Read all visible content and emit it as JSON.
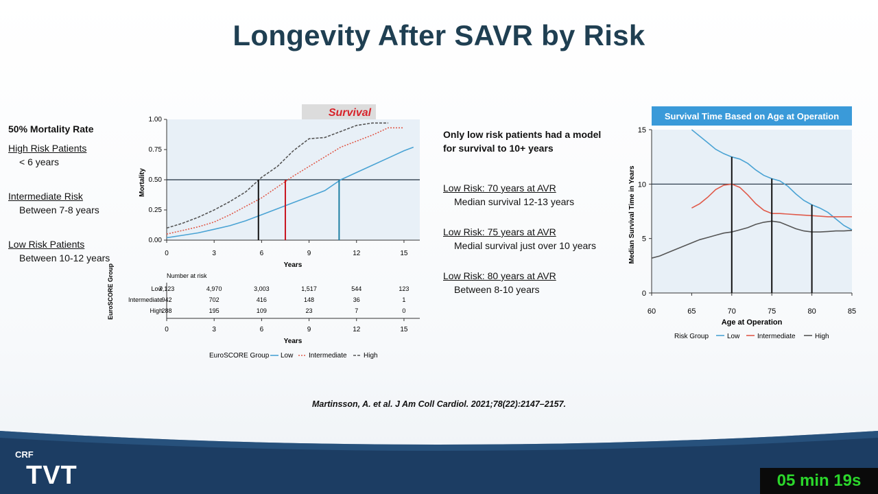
{
  "slide": {
    "title": "Longevity After SAVR by Risk",
    "citation": "Martinsson, A. et al. J Am Coll Cardiol. 2021;78(22):2147–2157.",
    "logo_small": "CRF",
    "logo_large": "TVT",
    "timer": "05 min 19s"
  },
  "left_panel": {
    "heading": "50% Mortality Rate",
    "high_label": "High Risk Patients",
    "high_value": "< 6 years",
    "inter_label": "Intermediate Risk",
    "inter_value": "Between 7-8 years",
    "low_label": "Low Risk Patients",
    "low_value": "Between 10-12 years"
  },
  "middle_panel": {
    "heading_line1": "Only low risk patients had a model",
    "heading_line2": "for survival to 10+ years",
    "item1_label": "Low Risk: 70 years at AVR",
    "item1_value": "Median survival 12-13 years",
    "item2_label": "Low Risk: 75 years at AVR",
    "item2_value": "Medial survival just over 10 years",
    "item3_label": "Low Risk:  80 years at AVR",
    "item3_value": "Between 8-10 years"
  },
  "colors": {
    "title": "#1f3f52",
    "low": "#4aa3d4",
    "intermediate": "#e05a4a",
    "high": "#555555",
    "banner": "#3a9ad9",
    "footer": "#1c3d63",
    "timer_text": "#2bd62b"
  },
  "chart_data": [
    {
      "type": "line",
      "annotation": "Survival",
      "xlabel": "Years",
      "ylabel": "Mortality",
      "xlim": [
        0,
        16
      ],
      "ylim": [
        0,
        1.0
      ],
      "x_ticks": [
        "0",
        "3",
        "6",
        "9",
        "12",
        "15"
      ],
      "y_ticks": [
        "0.00",
        "0.25",
        "0.50",
        "0.75",
        "1.00"
      ],
      "reference_line_y": 0.5,
      "markers": [
        {
          "x": 5.8,
          "series": "High"
        },
        {
          "x": 7.5,
          "series": "Intermediate"
        },
        {
          "x": 10.9,
          "series": "Low"
        }
      ],
      "series": [
        {
          "name": "Low",
          "style": "solid",
          "x": [
            0,
            1,
            2,
            3,
            4,
            5,
            6,
            7,
            8,
            9,
            10,
            11,
            12,
            13,
            14,
            15,
            15.6
          ],
          "y": [
            0.02,
            0.04,
            0.06,
            0.09,
            0.12,
            0.16,
            0.21,
            0.26,
            0.31,
            0.36,
            0.41,
            0.5,
            0.56,
            0.62,
            0.68,
            0.74,
            0.77
          ]
        },
        {
          "name": "Intermediate",
          "style": "dotted",
          "x": [
            0,
            1,
            2,
            3,
            4,
            5,
            6,
            7,
            8,
            9,
            10,
            11,
            12,
            13,
            14,
            15
          ],
          "y": [
            0.05,
            0.08,
            0.11,
            0.15,
            0.21,
            0.28,
            0.35,
            0.44,
            0.53,
            0.61,
            0.69,
            0.77,
            0.82,
            0.87,
            0.93,
            0.93
          ]
        },
        {
          "name": "High",
          "style": "dashed",
          "x": [
            0,
            1,
            2,
            3,
            4,
            5,
            6,
            7,
            8,
            9,
            10,
            11,
            12,
            13,
            14
          ],
          "y": [
            0.1,
            0.14,
            0.19,
            0.25,
            0.32,
            0.4,
            0.52,
            0.61,
            0.74,
            0.84,
            0.85,
            0.9,
            0.95,
            0.97,
            0.97
          ]
        }
      ],
      "risk_table": {
        "title": "Number at risk",
        "group_label": "EuroSCORE Group",
        "x_ticks": [
          "0",
          "3",
          "6",
          "9",
          "12",
          "15"
        ],
        "xlabel": "Years",
        "rows": [
          {
            "label": "Low",
            "values": [
              "7,123",
              "4,970",
              "3,003",
              "1,517",
              "544",
              "123"
            ]
          },
          {
            "label": "Intermediate",
            "values": [
              "942",
              "702",
              "416",
              "148",
              "36",
              "1"
            ]
          },
          {
            "label": "High",
            "values": [
              "288",
              "195",
              "109",
              "23",
              "7",
              "0"
            ]
          }
        ]
      },
      "legend": {
        "title": "EuroSCORE Group",
        "items": [
          "Low",
          "Intermediate",
          "High"
        ],
        "placement": "bottom"
      }
    },
    {
      "type": "line",
      "title": "Survival Time Based on Age at Operation",
      "xlabel": "Age at Operation",
      "ylabel": "Median Survival Time in Years",
      "xlim": [
        60,
        85
      ],
      "ylim": [
        0,
        15
      ],
      "x_ticks": [
        "60",
        "65",
        "70",
        "75",
        "80",
        "85"
      ],
      "y_ticks": [
        "0",
        "5",
        "10",
        "15"
      ],
      "reference_line_y": 10,
      "markers": [
        {
          "x": 70,
          "y": 12.5
        },
        {
          "x": 75,
          "y": 10.5
        },
        {
          "x": 80,
          "y": 8.1
        }
      ],
      "series": [
        {
          "name": "Low",
          "x": [
            65,
            66,
            67,
            68,
            69,
            70,
            71,
            72,
            73,
            74,
            75,
            76,
            77,
            78,
            79,
            80,
            81,
            82,
            83,
            84,
            85
          ],
          "y": [
            15.0,
            14.4,
            13.8,
            13.2,
            12.8,
            12.5,
            12.3,
            11.9,
            11.3,
            10.8,
            10.5,
            10.3,
            9.8,
            9.1,
            8.5,
            8.1,
            7.8,
            7.4,
            6.8,
            6.2,
            5.8
          ]
        },
        {
          "name": "Intermediate",
          "x": [
            65,
            66,
            67,
            68,
            69,
            70,
            71,
            72,
            73,
            74,
            75,
            76,
            77,
            78,
            79,
            80,
            81,
            82,
            83,
            84,
            85
          ],
          "y": [
            7.8,
            8.2,
            8.8,
            9.5,
            9.9,
            10.0,
            9.7,
            9.0,
            8.2,
            7.6,
            7.3,
            7.3,
            7.25,
            7.2,
            7.15,
            7.1,
            7.05,
            7.0,
            7.0,
            7.0,
            7.0
          ]
        },
        {
          "name": "High",
          "x": [
            60,
            61,
            62,
            63,
            64,
            65,
            66,
            67,
            68,
            69,
            70,
            71,
            72,
            73,
            74,
            75,
            76,
            77,
            78,
            79,
            80,
            81,
            82,
            83,
            84,
            85
          ],
          "y": [
            3.2,
            3.4,
            3.7,
            4.0,
            4.3,
            4.6,
            4.9,
            5.1,
            5.3,
            5.5,
            5.6,
            5.8,
            6.0,
            6.3,
            6.5,
            6.6,
            6.5,
            6.2,
            5.9,
            5.7,
            5.6,
            5.6,
            5.65,
            5.7,
            5.7,
            5.75
          ]
        }
      ],
      "legend": {
        "title": "Risk Group",
        "items": [
          "Low",
          "Intermediate",
          "High"
        ],
        "placement": "bottom"
      }
    }
  ]
}
